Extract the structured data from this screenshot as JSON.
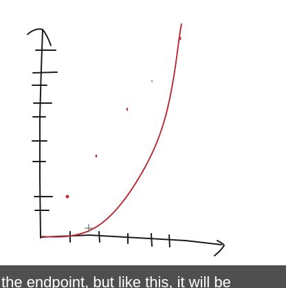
{
  "caption": {
    "text": "the endpoint, but like this, it will be"
  },
  "colors": {
    "ink": "#1a1a1a",
    "pen": "#b92f35",
    "caption_bg": "#4f4f4f",
    "caption_text": "#ffffff"
  }
}
